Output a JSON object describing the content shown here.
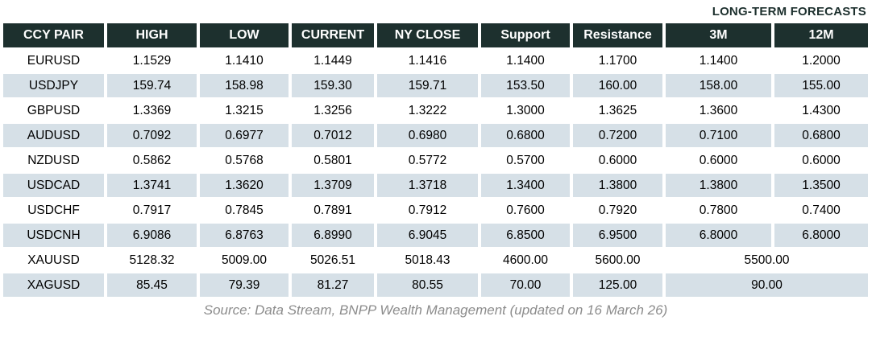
{
  "title_label": "LONG-TERM FORECASTS",
  "table": {
    "headers": [
      "CCY PAIR",
      "HIGH",
      "LOW",
      "CURRENT",
      "NY CLOSE",
      "Support",
      "Resistance",
      "3M",
      "12M"
    ],
    "rows": [
      {
        "pair": "EURUSD",
        "high": "1.1529",
        "low": "1.1410",
        "current": "1.1449",
        "ny_close": "1.1416",
        "support": "1.1400",
        "resistance": "1.1700",
        "forecast_3m": "1.1400",
        "forecast_12m": "1.2000"
      },
      {
        "pair": "USDJPY",
        "high": "159.74",
        "low": "158.98",
        "current": "159.30",
        "ny_close": "159.71",
        "support": "153.50",
        "resistance": "160.00",
        "forecast_3m": "158.00",
        "forecast_12m": "155.00"
      },
      {
        "pair": "GBPUSD",
        "high": "1.3369",
        "low": "1.3215",
        "current": "1.3256",
        "ny_close": "1.3222",
        "support": "1.3000",
        "resistance": "1.3625",
        "forecast_3m": "1.3600",
        "forecast_12m": "1.4300"
      },
      {
        "pair": "AUDUSD",
        "high": "0.7092",
        "low": "0.6977",
        "current": "0.7012",
        "ny_close": "0.6980",
        "support": "0.6800",
        "resistance": "0.7200",
        "forecast_3m": "0.7100",
        "forecast_12m": "0.6800"
      },
      {
        "pair": "NZDUSD",
        "high": "0.5862",
        "low": "0.5768",
        "current": "0.5801",
        "ny_close": "0.5772",
        "support": "0.5700",
        "resistance": "0.6000",
        "forecast_3m": "0.6000",
        "forecast_12m": "0.6000"
      },
      {
        "pair": "USDCAD",
        "high": "1.3741",
        "low": "1.3620",
        "current": "1.3709",
        "ny_close": "1.3718",
        "support": "1.3400",
        "resistance": "1.3800",
        "forecast_3m": "1.3800",
        "forecast_12m": "1.3500"
      },
      {
        "pair": "USDCHF",
        "high": "0.7917",
        "low": "0.7845",
        "current": "0.7891",
        "ny_close": "0.7912",
        "support": "0.7600",
        "resistance": "0.7920",
        "forecast_3m": "0.7800",
        "forecast_12m": "0.7400"
      },
      {
        "pair": "USDCNH",
        "high": "6.9086",
        "low": "6.8763",
        "current": "6.8990",
        "ny_close": "6.9045",
        "support": "6.8500",
        "resistance": "6.9500",
        "forecast_3m": "6.8000",
        "forecast_12m": "6.8000"
      },
      {
        "pair": "XAUUSD",
        "high": "5128.32",
        "low": "5009.00",
        "current": "5026.51",
        "ny_close": "5018.43",
        "support": "4600.00",
        "resistance": "5600.00",
        "forecast_merged": "5500.00"
      },
      {
        "pair": "XAGUSD",
        "high": "85.45",
        "low": "79.39",
        "current": "81.27",
        "ny_close": "80.55",
        "support": "70.00",
        "resistance": "125.00",
        "forecast_merged": "90.00"
      }
    ]
  },
  "footer": {
    "source_text": "Source: Data Stream, BNPP Wealth Management (updated on 16 March 26)"
  },
  "colors": {
    "header_bg": "#1d302e",
    "header_text": "#ffffff",
    "row_alt_bg": "#d6e0e7",
    "body_text": "#000000",
    "title_text": "#1d302e",
    "footer_text": "#8c8c8c"
  }
}
